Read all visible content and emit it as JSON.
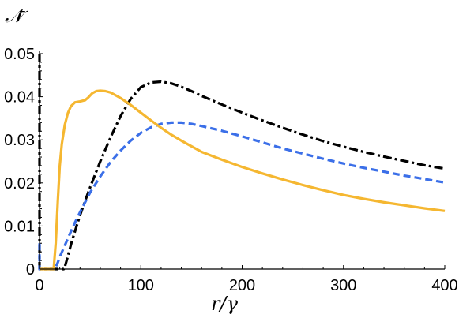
{
  "chart_data": {
    "type": "line",
    "xlabel": "r/γ",
    "ylabel": "𝒩̄",
    "xlim": [
      0,
      400
    ],
    "ylim": [
      0,
      0.05
    ],
    "xticks": [
      "0",
      "100",
      "200",
      "300",
      "400"
    ],
    "yticks": [
      "0",
      "0.01",
      "0.02",
      "0.03",
      "0.04",
      "0.05"
    ],
    "xtick_values": [
      0,
      100,
      200,
      300,
      400
    ],
    "ytick_values": [
      0,
      0.01,
      0.02,
      0.03,
      0.04,
      0.05
    ],
    "grid": false,
    "series": [
      {
        "style": "dash-dot",
        "color": "#000000",
        "x": [
          0,
          0,
          0,
          24,
          25,
          28,
          32,
          36,
          40,
          45,
          50,
          55,
          60,
          70,
          80,
          90,
          100,
          110,
          120,
          130,
          140,
          150,
          160,
          180,
          200,
          220,
          240,
          260,
          280,
          300,
          320,
          340,
          360,
          380,
          400
        ],
        "y": [
          0.05,
          0,
          0,
          0,
          0.0005,
          0.003,
          0.0065,
          0.0095,
          0.0125,
          0.0158,
          0.019,
          0.022,
          0.025,
          0.0305,
          0.0355,
          0.0395,
          0.0422,
          0.0433,
          0.0435,
          0.0431,
          0.0423,
          0.0413,
          0.0402,
          0.0382,
          0.0363,
          0.0345,
          0.0328,
          0.0312,
          0.0297,
          0.0284,
          0.0272,
          0.0261,
          0.0251,
          0.0241,
          0.0233
        ]
      },
      {
        "style": "dashed",
        "color": "#3b6fe8",
        "x": [
          0,
          0,
          5,
          15,
          18,
          20,
          25,
          30,
          35,
          40,
          45,
          50,
          60,
          70,
          80,
          90,
          100,
          110,
          120,
          130,
          140,
          150,
          160,
          180,
          200,
          220,
          240,
          260,
          280,
          300,
          320,
          340,
          360,
          380,
          400
        ],
        "y": [
          0.006,
          0,
          0,
          0,
          0.0015,
          0.0028,
          0.0055,
          0.0082,
          0.0108,
          0.0132,
          0.0155,
          0.0178,
          0.0215,
          0.0248,
          0.0275,
          0.0298,
          0.0316,
          0.0329,
          0.0337,
          0.034,
          0.034,
          0.0337,
          0.0332,
          0.0321,
          0.0308,
          0.0294,
          0.028,
          0.0268,
          0.0256,
          0.0245,
          0.0235,
          0.0226,
          0.0217,
          0.0209,
          0.0201
        ]
      },
      {
        "style": "solid",
        "color": "#f5b731",
        "x": [
          0,
          14,
          16,
          18,
          20,
          22,
          25,
          28,
          31,
          35,
          40,
          45,
          48,
          52,
          56,
          60,
          65,
          70,
          80,
          90,
          100,
          110,
          120,
          130,
          140,
          160,
          180,
          200,
          220,
          240,
          260,
          280,
          300,
          320,
          340,
          360,
          380,
          400
        ],
        "y": [
          0,
          0,
          0.006,
          0.0155,
          0.024,
          0.029,
          0.0335,
          0.0362,
          0.0378,
          0.0387,
          0.0389,
          0.0392,
          0.0398,
          0.0408,
          0.0413,
          0.0414,
          0.0413,
          0.041,
          0.0397,
          0.0381,
          0.0363,
          0.0345,
          0.0328,
          0.0312,
          0.0298,
          0.0272,
          0.0254,
          0.0237,
          0.0222,
          0.0208,
          0.0195,
          0.0183,
          0.0172,
          0.0163,
          0.0155,
          0.0148,
          0.0141,
          0.0135
        ]
      }
    ]
  }
}
